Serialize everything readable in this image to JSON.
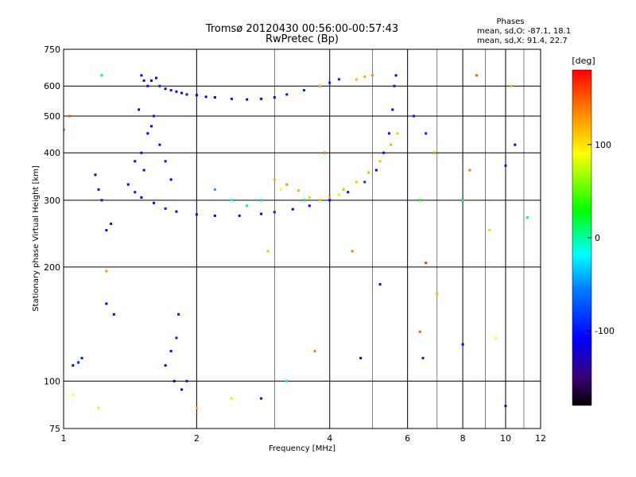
{
  "chart_data": {
    "type": "scatter",
    "title": "Tromsø 20120430 00:56:00-00:57:43",
    "subtitle": "RwPretec (Bp)",
    "xlabel": "Frequency [MHz]",
    "ylabel": "Stationary phase Virtual Height [km]",
    "x_scale": "log",
    "y_scale": "log",
    "xlim": [
      1,
      12
    ],
    "ylim": [
      75,
      750
    ],
    "x_ticks": [
      1,
      2,
      4,
      6,
      8,
      10,
      12
    ],
    "x_tick_labels": [
      "1",
      "2",
      "4",
      "6",
      "8",
      "10",
      "12"
    ],
    "x_minor_grid": [
      3,
      5,
      7,
      9,
      11
    ],
    "y_ticks": [
      75,
      100,
      200,
      300,
      400,
      500,
      600,
      750
    ],
    "y_tick_labels": [
      "75",
      "100",
      "200",
      "300",
      "400",
      "500",
      "600",
      "750"
    ],
    "grid": true,
    "phase_stats": {
      "header": "Phases",
      "line_o": "mean, sd,O: -87.1, 18.1",
      "line_x": "mean, sd,X:  91.4, 22.7"
    },
    "colorbar": {
      "label": "[deg]",
      "range": [
        -180,
        180
      ],
      "ticks": [
        100,
        0,
        -100
      ],
      "tick_labels": [
        "100",
        "0",
        "-100"
      ],
      "colormap": "rainbow"
    },
    "series": [
      {
        "points": [
          [
            1.5,
            640,
            -110
          ],
          [
            1.52,
            620,
            -115
          ],
          [
            1.55,
            600,
            -100
          ],
          [
            1.58,
            620,
            -120
          ],
          [
            1.62,
            630,
            -105
          ],
          [
            1.65,
            600,
            -95
          ],
          [
            1.7,
            590,
            -110
          ],
          [
            1.75,
            585,
            -100
          ],
          [
            1.8,
            580,
            -120
          ],
          [
            1.85,
            575,
            -110
          ],
          [
            1.9,
            570,
            -100
          ],
          [
            2.0,
            568,
            -115
          ],
          [
            2.1,
            562,
            -105
          ],
          [
            2.2,
            560,
            -110
          ],
          [
            2.4,
            555,
            -100
          ],
          [
            2.6,
            553,
            -115
          ],
          [
            2.8,
            555,
            -108
          ],
          [
            3.0,
            560,
            -112
          ],
          [
            3.2,
            570,
            -100
          ],
          [
            3.5,
            585,
            -95
          ],
          [
            3.8,
            600,
            -105
          ],
          [
            4.0,
            612,
            -98
          ],
          [
            4.2,
            625,
            -90
          ],
          [
            1.4,
            330,
            -110
          ],
          [
            1.45,
            315,
            -100
          ],
          [
            1.5,
            305,
            -120
          ],
          [
            1.6,
            295,
            -105
          ],
          [
            1.7,
            285,
            -95
          ],
          [
            1.8,
            280,
            -110
          ],
          [
            2.0,
            275,
            -100
          ],
          [
            2.2,
            273,
            -115
          ],
          [
            2.5,
            273,
            -105
          ],
          [
            2.8,
            276,
            -110
          ],
          [
            3.0,
            279,
            -100
          ],
          [
            3.3,
            284,
            -115
          ],
          [
            3.6,
            290,
            -105
          ],
          [
            4.0,
            300,
            -110
          ],
          [
            4.4,
            315,
            -100
          ],
          [
            4.8,
            335,
            -95
          ],
          [
            5.1,
            360,
            -110
          ],
          [
            5.3,
            400,
            -100
          ],
          [
            5.45,
            450,
            -105
          ],
          [
            5.55,
            520,
            -110
          ],
          [
            5.6,
            600,
            -100
          ],
          [
            5.65,
            640,
            -115
          ],
          [
            1.5,
            400,
            -120
          ],
          [
            1.55,
            450,
            -110
          ],
          [
            1.6,
            500,
            -100
          ],
          [
            1.48,
            520,
            -115
          ],
          [
            1.52,
            360,
            -105
          ],
          [
            1.65,
            420,
            -110
          ],
          [
            1.7,
            380,
            -100
          ],
          [
            1.58,
            470,
            -120
          ],
          [
            1.45,
            380,
            -105
          ],
          [
            1.75,
            340,
            -110
          ],
          [
            1.2,
            320,
            -100
          ],
          [
            1.22,
            300,
            -110
          ],
          [
            1.25,
            250,
            -105
          ],
          [
            1.28,
            260,
            -100
          ],
          [
            1.18,
            350,
            -115
          ],
          [
            1.1,
            115,
            -100
          ],
          [
            1.05,
            110,
            -105
          ],
          [
            1.08,
            112,
            -95
          ],
          [
            1.25,
            160,
            -110
          ],
          [
            1.3,
            150,
            -100
          ],
          [
            1.78,
            100,
            -110
          ],
          [
            1.8,
            130,
            -100
          ],
          [
            1.82,
            150,
            -95
          ],
          [
            1.75,
            120,
            -105
          ],
          [
            1.85,
            95,
            -110
          ],
          [
            1.9,
            100,
            -100
          ],
          [
            1.7,
            110,
            -120
          ],
          [
            2.4,
            300,
            -20
          ],
          [
            2.6,
            290,
            10
          ],
          [
            2.2,
            320,
            -40
          ],
          [
            2.8,
            300,
            -30
          ],
          [
            3.0,
            340,
            120
          ],
          [
            3.2,
            330,
            130
          ],
          [
            3.4,
            318,
            120
          ],
          [
            3.6,
            305,
            110
          ],
          [
            3.8,
            300,
            120
          ],
          [
            4.0,
            305,
            125
          ],
          [
            4.3,
            320,
            120
          ],
          [
            4.6,
            335,
            110
          ],
          [
            4.9,
            355,
            120
          ],
          [
            5.2,
            380,
            115
          ],
          [
            5.5,
            420,
            120
          ],
          [
            5.7,
            450,
            110
          ],
          [
            3.1,
            320,
            90
          ],
          [
            3.5,
            300,
            20
          ],
          [
            4.2,
            310,
            100
          ],
          [
            4.6,
            625,
            115
          ],
          [
            4.8,
            635,
            120
          ],
          [
            5.0,
            640,
            130
          ],
          [
            3.8,
            600,
            110
          ],
          [
            6.6,
            450,
            -95
          ],
          [
            6.6,
            205,
            160
          ],
          [
            6.4,
            300,
            30
          ],
          [
            6.9,
            400,
            135
          ],
          [
            7.0,
            170,
            115
          ],
          [
            8.3,
            360,
            140
          ],
          [
            8.6,
            640,
            150
          ],
          [
            9.2,
            250,
            110
          ],
          [
            9.5,
            130,
            90
          ],
          [
            10.0,
            370,
            -100
          ],
          [
            10.3,
            600,
            120
          ],
          [
            10.5,
            420,
            -105
          ],
          [
            11.2,
            270,
            10
          ],
          [
            10.0,
            86,
            -140
          ],
          [
            6.5,
            115,
            -100
          ],
          [
            6.4,
            135,
            150
          ],
          [
            8.0,
            125,
            -110
          ],
          [
            4.7,
            115,
            -120
          ],
          [
            3.2,
            100,
            -10
          ],
          [
            2.8,
            90,
            -110
          ],
          [
            2.4,
            90,
            100
          ],
          [
            3.7,
            120,
            140
          ],
          [
            1.0,
            460,
            160
          ],
          [
            1.03,
            500,
            150
          ],
          [
            1.22,
            640,
            -30
          ],
          [
            1.05,
            92,
            90
          ],
          [
            1.2,
            85,
            80
          ],
          [
            1.25,
            195,
            130
          ],
          [
            2.0,
            85,
            120
          ],
          [
            3.9,
            400,
            145
          ],
          [
            5.2,
            180,
            -110
          ],
          [
            4.5,
            220,
            140
          ],
          [
            2.9,
            220,
            60
          ],
          [
            6.2,
            500,
            -100
          ],
          [
            8.0,
            300,
            20
          ]
        ]
      }
    ]
  }
}
